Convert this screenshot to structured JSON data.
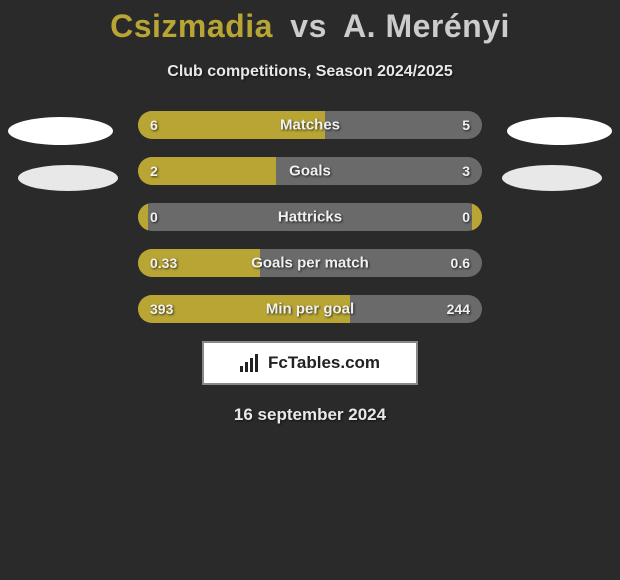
{
  "title": {
    "player1": "Csizmadia",
    "vs": "vs",
    "player2": "A. Merényi",
    "player1_color": "#b8a534",
    "player2_color": "#cccccc"
  },
  "subtitle": "Club competitions, Season 2024/2025",
  "ellipse_colors": {
    "main": "#ffffff",
    "secondary": "#e8e8e8"
  },
  "chart": {
    "bar_bg": "#6a6a6a",
    "fill_color": "#b8a534",
    "rows": [
      {
        "label": "Matches",
        "left_val": "6",
        "right_val": "5",
        "left_pct": 54.5,
        "right_pct": 0
      },
      {
        "label": "Goals",
        "left_val": "2",
        "right_val": "3",
        "left_pct": 40,
        "right_pct": 0
      },
      {
        "label": "Hattricks",
        "left_val": "0",
        "right_val": "0",
        "left_pct": 3,
        "right_pct": 3
      },
      {
        "label": "Goals per match",
        "left_val": "0.33",
        "right_val": "0.6",
        "left_pct": 35.5,
        "right_pct": 0
      },
      {
        "label": "Min per goal",
        "left_val": "393",
        "right_val": "244",
        "left_pct": 61.7,
        "right_pct": 0
      }
    ]
  },
  "brand": "FcTables.com",
  "date": "16 september 2024",
  "background_color": "#2a2a2a"
}
